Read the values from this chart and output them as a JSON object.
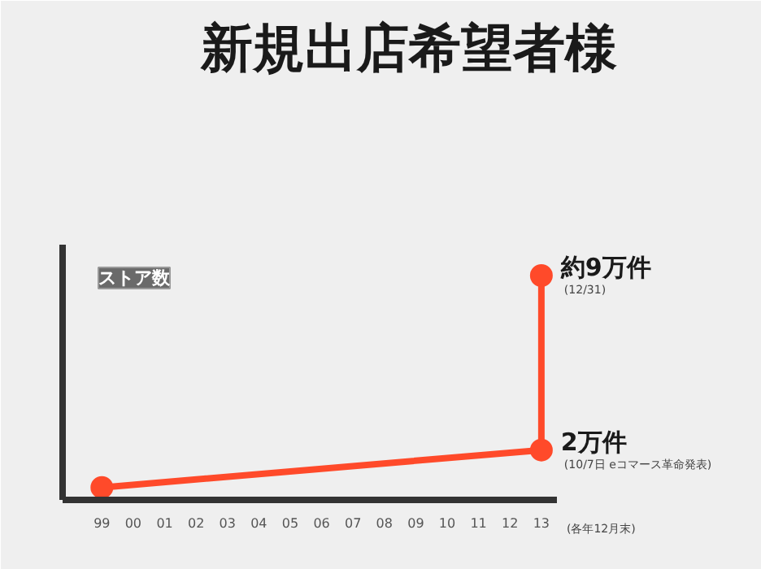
{
  "chart_data": {
    "type": "line",
    "title": "新規出店希望者様",
    "ylabel": "ストア数",
    "x": [
      "1999",
      "2013",
      "2013"
    ],
    "values": [
      0.5,
      2,
      9
    ],
    "value_labels": [
      null,
      "2万件",
      "約9万件"
    ],
    "color": "#ff4a2a",
    "marker": "circle",
    "line_style": "solid",
    "grid": false,
    "xlim": [
      "1997-10",
      "2013-07"
    ],
    "xticks": [
      {
        "value": "1999",
        "label": "99"
      },
      {
        "value": "2000",
        "label": "00"
      },
      {
        "value": "2001",
        "label": "01"
      },
      {
        "value": "2002",
        "label": "02"
      },
      {
        "value": "2003",
        "label": "03"
      },
      {
        "value": "2004",
        "label": "04"
      },
      {
        "value": "2005",
        "label": "05"
      },
      {
        "value": "2006",
        "label": "06"
      },
      {
        "value": "2007",
        "label": "07"
      },
      {
        "value": "2008",
        "label": "08"
      },
      {
        "value": "2009",
        "label": "09"
      },
      {
        "value": "2010",
        "label": "10"
      },
      {
        "value": "2011",
        "label": "11"
      },
      {
        "value": "2012",
        "label": "12"
      },
      {
        "value": "2013",
        "label": "13"
      }
    ],
    "annotations": [
      {
        "text": "(12/31)",
        "x": "2013",
        "y": 9
      },
      {
        "text": "(10/7日 eコマース革命発表)",
        "x": "2013",
        "y": 2
      },
      "(各年12月末)"
    ]
  }
}
